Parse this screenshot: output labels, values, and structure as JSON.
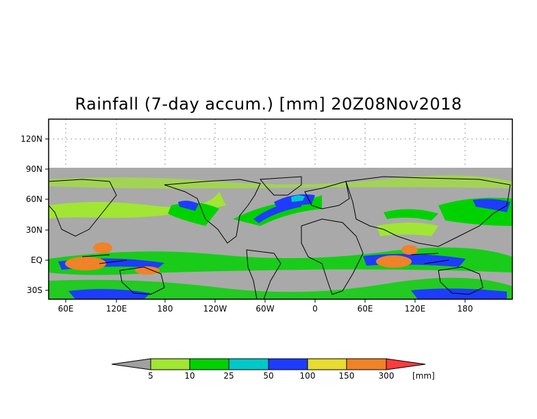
{
  "title": "Rainfall (7-day accum.) [mm] 20Z08Nov2018",
  "map": {
    "lat_labels": [
      "120N",
      "90N",
      "60N",
      "30N",
      "EQ",
      "30S"
    ],
    "lon_labels": [
      "60E",
      "120E",
      "180",
      "120W",
      "60W",
      "0",
      "60E",
      "120E",
      "180"
    ],
    "no_data_color": "#a9a9a9",
    "land_outline_color": "#000000"
  },
  "colorbar": {
    "thresholds": [
      "5",
      "10",
      "25",
      "50",
      "100",
      "150",
      "300"
    ],
    "unit": "[mm]",
    "colors": [
      "#a0a0a0",
      "#a0e632",
      "#00d200",
      "#00c8c8",
      "#1e3cff",
      "#e6dc32",
      "#f08228",
      "#fa3c3c"
    ]
  }
}
